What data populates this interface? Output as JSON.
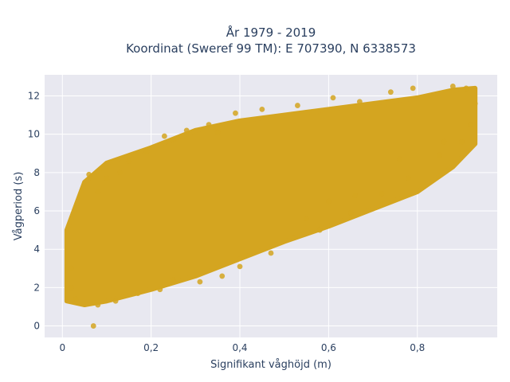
{
  "chart_data": {
    "type": "scatter",
    "title_line1": "År 1979 - 2019",
    "title_line2": "Koordinat (Sweref 99 TM): E 707390, N 6338573",
    "xlabel": "Signifikant våghöjd (m)",
    "ylabel": "Vågperiod (s)",
    "xlim": [
      -0.04,
      0.98
    ],
    "ylim": [
      -0.6,
      13.1
    ],
    "xticks": [
      0,
      0.2,
      0.4,
      0.6,
      0.8
    ],
    "xtick_labels": [
      "0",
      "0,2",
      "0,4",
      "0,6",
      "0,8"
    ],
    "yticks": [
      0,
      2,
      4,
      6,
      8,
      10,
      12
    ],
    "ytick_labels": [
      "0",
      "2",
      "4",
      "6",
      "8",
      "10",
      "12"
    ],
    "grid": true,
    "background": "#e8e8f0",
    "marker_color": "#d4a520",
    "band": {
      "upper": [
        [
          0.01,
          5.0
        ],
        [
          0.05,
          7.5
        ],
        [
          0.1,
          8.5
        ],
        [
          0.2,
          9.3
        ],
        [
          0.3,
          10.2
        ],
        [
          0.4,
          10.7
        ],
        [
          0.5,
          11.0
        ],
        [
          0.6,
          11.3
        ],
        [
          0.7,
          11.6
        ],
        [
          0.8,
          11.9
        ],
        [
          0.88,
          12.3
        ],
        [
          0.93,
          12.4
        ]
      ],
      "lower": [
        [
          0.01,
          1.3
        ],
        [
          0.05,
          1.1
        ],
        [
          0.1,
          1.3
        ],
        [
          0.2,
          1.9
        ],
        [
          0.3,
          2.6
        ],
        [
          0.4,
          3.5
        ],
        [
          0.5,
          4.4
        ],
        [
          0.6,
          5.2
        ],
        [
          0.7,
          6.1
        ],
        [
          0.8,
          7.0
        ],
        [
          0.88,
          8.3
        ],
        [
          0.93,
          9.5
        ]
      ]
    },
    "outliers": [
      [
        0.07,
        0.0
      ],
      [
        0.02,
        3.0
      ],
      [
        0.06,
        7.9
      ],
      [
        0.08,
        7.0
      ],
      [
        0.1,
        7.7
      ],
      [
        0.13,
        8.0
      ],
      [
        0.15,
        8.6
      ],
      [
        0.19,
        9.1
      ],
      [
        0.23,
        9.9
      ],
      [
        0.25,
        9.7
      ],
      [
        0.28,
        10.2
      ],
      [
        0.33,
        10.5
      ],
      [
        0.35,
        10.1
      ],
      [
        0.39,
        11.1
      ],
      [
        0.45,
        11.3
      ],
      [
        0.53,
        11.5
      ],
      [
        0.61,
        11.9
      ],
      [
        0.67,
        11.7
      ],
      [
        0.74,
        12.2
      ],
      [
        0.79,
        12.4
      ],
      [
        0.83,
        12.0
      ],
      [
        0.88,
        12.5
      ],
      [
        0.91,
        12.4
      ],
      [
        0.93,
        11.6
      ],
      [
        0.9,
        9.6
      ],
      [
        0.85,
        8.9
      ],
      [
        0.78,
        7.7
      ],
      [
        0.72,
        6.9
      ],
      [
        0.65,
        5.9
      ],
      [
        0.58,
        5.0
      ],
      [
        0.52,
        4.6
      ],
      [
        0.47,
        3.8
      ],
      [
        0.4,
        3.1
      ],
      [
        0.36,
        2.6
      ],
      [
        0.31,
        2.3
      ],
      [
        0.25,
        2.4
      ],
      [
        0.22,
        1.9
      ],
      [
        0.17,
        1.7
      ],
      [
        0.12,
        1.3
      ],
      [
        0.08,
        1.1
      ],
      [
        0.03,
        1.4
      ],
      [
        0.02,
        2.0
      ],
      [
        0.92,
        10.5
      ],
      [
        0.86,
        9.6
      ],
      [
        0.76,
        8.7
      ],
      [
        0.66,
        6.8
      ],
      [
        0.6,
        6.5
      ],
      [
        0.55,
        5.6
      ]
    ]
  }
}
